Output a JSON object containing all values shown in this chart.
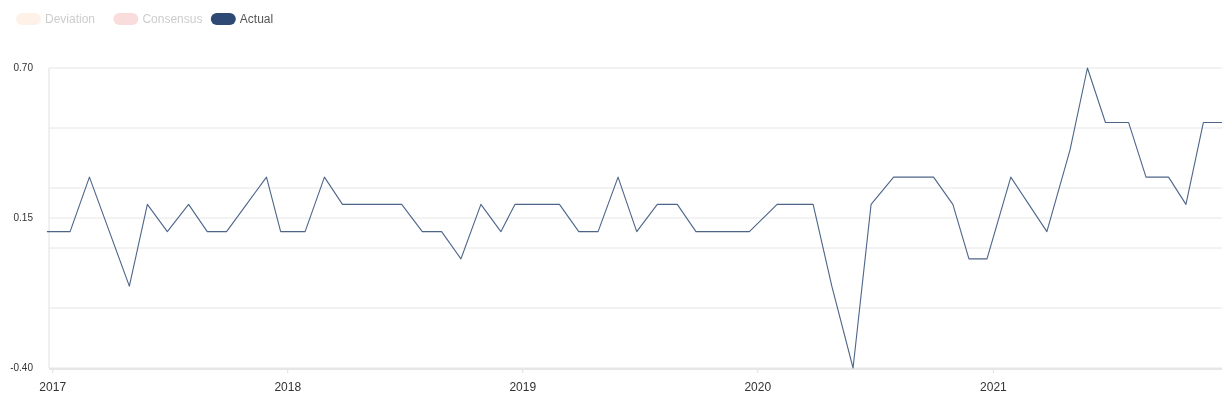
{
  "chart_data": {
    "type": "line",
    "x": [
      "2016-12-23",
      "2017-01-28",
      "2017-02-27",
      "2017-03-30",
      "2017-04-30",
      "2017-05-28",
      "2017-06-28",
      "2017-07-31",
      "2017-08-29",
      "2017-09-28",
      "2017-10-29",
      "2017-11-29",
      "2017-12-21",
      "2018-01-28",
      "2018-02-27",
      "2018-03-27",
      "2018-04-27",
      "2018-05-28",
      "2018-06-27",
      "2018-07-29",
      "2018-08-28",
      "2018-09-27",
      "2018-10-28",
      "2018-11-28",
      "2018-12-20",
      "2019-01-27",
      "2019-02-27",
      "2019-03-29",
      "2019-04-28",
      "2019-05-29",
      "2019-06-27",
      "2019-07-29",
      "2019-08-29",
      "2019-09-27",
      "2019-10-29",
      "2019-11-26",
      "2019-12-19",
      "2020-01-31",
      "2020-02-28",
      "2020-03-27",
      "2020-04-25",
      "2020-05-28",
      "2020-06-25",
      "2020-07-30",
      "2020-08-27",
      "2020-09-30",
      "2020-10-30",
      "2020-11-24",
      "2020-12-22",
      "2021-01-28",
      "2021-02-25",
      "2021-03-25",
      "2021-04-30",
      "2021-05-27",
      "2021-06-24",
      "2021-07-30",
      "2021-08-26",
      "2021-09-30",
      "2021-10-27",
      "2021-11-23",
      "2021-12-22"
    ],
    "series": [
      {
        "name": "Deviation",
        "color": "#fdf1e8",
        "values": [
          null,
          null,
          null,
          null,
          null,
          null,
          null,
          null,
          null,
          null,
          null,
          null,
          null,
          null,
          null,
          null,
          null,
          null,
          null,
          null,
          null,
          null,
          null,
          null,
          null,
          null,
          null,
          null,
          null,
          null,
          null,
          null,
          null,
          null,
          null,
          null,
          null,
          null,
          null,
          null,
          null,
          null,
          null,
          null,
          null,
          null,
          null,
          null,
          null,
          null,
          null,
          null,
          null,
          null,
          null,
          null,
          null,
          null,
          null,
          null,
          null
        ]
      },
      {
        "name": "Consensus",
        "color": "#f9dcdc",
        "values": [
          null,
          null,
          null,
          null,
          null,
          null,
          null,
          null,
          null,
          null,
          null,
          null,
          null,
          null,
          null,
          null,
          null,
          null,
          null,
          null,
          null,
          null,
          null,
          null,
          null,
          null,
          null,
          null,
          null,
          null,
          null,
          null,
          null,
          null,
          null,
          null,
          null,
          null,
          null,
          null,
          null,
          null,
          null,
          null,
          null,
          null,
          null,
          null,
          null,
          null,
          null,
          null,
          null,
          null,
          null,
          null,
          null,
          null,
          null,
          null,
          null
        ]
      },
      {
        "name": "Actual",
        "color": "#2e4a74",
        "values": [
          0.1,
          0.1,
          0.3,
          0.1,
          -0.1,
          0.2,
          0.1,
          0.2,
          0.1,
          0.1,
          0.2,
          0.3,
          0.1,
          0.1,
          0.3,
          0.2,
          0.2,
          0.2,
          0.2,
          0.1,
          0.1,
          0.0,
          0.2,
          0.1,
          0.2,
          0.2,
          0.2,
          0.1,
          0.1,
          0.3,
          0.1,
          0.2,
          0.2,
          0.1,
          0.1,
          0.1,
          0.1,
          0.2,
          0.2,
          0.2,
          -0.1,
          -0.4,
          0.2,
          0.3,
          0.3,
          0.3,
          0.2,
          0.0,
          0.0,
          0.3,
          0.2,
          0.1,
          0.4,
          0.7,
          0.5,
          0.5,
          0.3,
          0.3,
          0.2,
          0.5,
          0.5
        ]
      }
    ],
    "xlim": [
      "2016-12-20",
      "2021-12-22"
    ],
    "xticks": [
      {
        "value": "2017-01-01",
        "label": "2017"
      },
      {
        "value": "2018-01-01",
        "label": "2018"
      },
      {
        "value": "2019-01-01",
        "label": "2019"
      },
      {
        "value": "2020-01-01",
        "label": "2020"
      },
      {
        "value": "2021-01-01",
        "label": "2021"
      }
    ],
    "ylim": [
      -0.4,
      0.7
    ],
    "yticks": [
      {
        "value": 0.7,
        "label": "0.70"
      },
      {
        "value": 0.48,
        "label": null
      },
      {
        "value": 0.26,
        "label": null
      },
      {
        "value": 0.15,
        "label": "0.15"
      },
      {
        "value": 0.04,
        "label": null
      },
      {
        "value": -0.18,
        "label": null
      },
      {
        "value": -0.4,
        "label": "-0.40"
      }
    ],
    "grid": "y",
    "legend": "top left",
    "marker": "none",
    "line_style": "solid"
  }
}
